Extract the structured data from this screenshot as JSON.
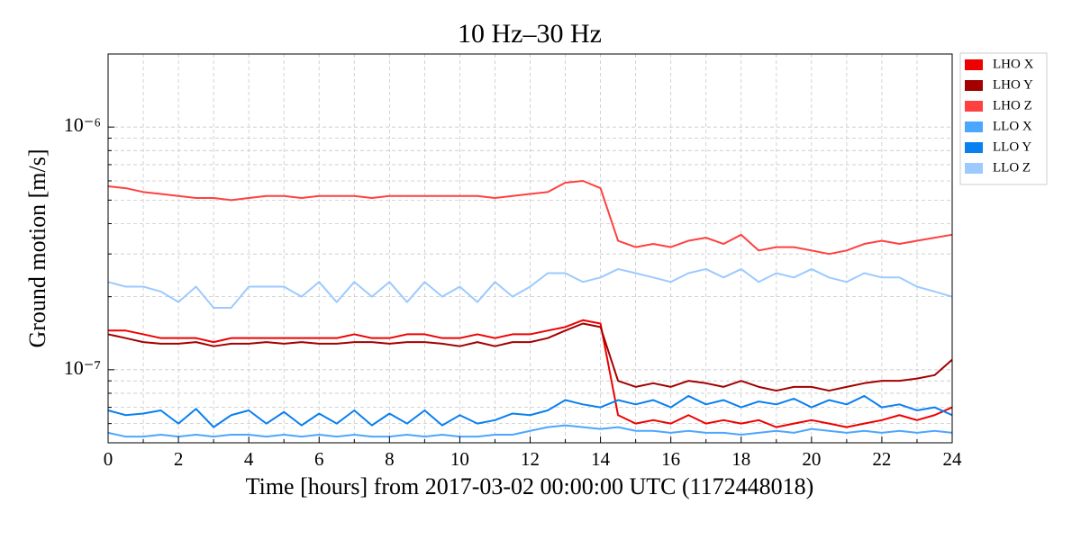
{
  "chart_data": {
    "type": "line",
    "title": "10 Hz–30 Hz",
    "xlabel": "Time [hours] from 2017-03-02 00:00:00 UTC (1172448018)",
    "ylabel": "Ground motion [m/s]",
    "yscale": "log",
    "grid": true,
    "legend": "outside-upper-right",
    "xlim": [
      0,
      24
    ],
    "xticks": [
      0,
      2,
      4,
      6,
      8,
      10,
      12,
      14,
      16,
      18,
      20,
      22,
      24
    ],
    "xminorticks": [
      1,
      3,
      5,
      7,
      9,
      11,
      13,
      15,
      17,
      19,
      21,
      23
    ],
    "ylim": [
      5e-08,
      2e-06
    ],
    "yticks": [
      {
        "value": 1e-07,
        "label": "10⁻⁷"
      },
      {
        "value": 1e-06,
        "label": "10⁻⁶"
      }
    ],
    "yminorticks": [
      6e-08,
      7e-08,
      8e-08,
      9e-08,
      2e-07,
      3e-07,
      4e-07,
      5e-07,
      6e-07,
      7e-07,
      8e-07,
      9e-07
    ],
    "x": [
      0,
      0.5,
      1,
      1.5,
      2,
      2.5,
      3,
      3.5,
      4,
      4.5,
      5,
      5.5,
      6,
      6.5,
      7,
      7.5,
      8,
      8.5,
      9,
      9.5,
      10,
      10.5,
      11,
      11.5,
      12,
      12.5,
      13,
      13.5,
      14,
      14.5,
      15,
      15.5,
      16,
      16.5,
      17,
      17.5,
      18,
      18.5,
      19,
      19.5,
      20,
      20.5,
      21,
      21.5,
      22,
      22.5,
      23,
      23.5,
      24
    ],
    "series": [
      {
        "name": "LHO X",
        "color": "#ee0000",
        "values": [
          1.45e-07,
          1.45e-07,
          1.4e-07,
          1.35e-07,
          1.35e-07,
          1.35e-07,
          1.3e-07,
          1.35e-07,
          1.35e-07,
          1.35e-07,
          1.35e-07,
          1.35e-07,
          1.35e-07,
          1.35e-07,
          1.4e-07,
          1.35e-07,
          1.35e-07,
          1.4e-07,
          1.4e-07,
          1.35e-07,
          1.35e-07,
          1.4e-07,
          1.35e-07,
          1.4e-07,
          1.4e-07,
          1.45e-07,
          1.5e-07,
          1.6e-07,
          1.55e-07,
          6.5e-08,
          6e-08,
          6.2e-08,
          6e-08,
          6.5e-08,
          6e-08,
          6.2e-08,
          6e-08,
          6.2e-08,
          5.8e-08,
          6e-08,
          6.2e-08,
          6e-08,
          5.8e-08,
          6e-08,
          6.2e-08,
          6.5e-08,
          6.2e-08,
          6.5e-08,
          7e-08
        ]
      },
      {
        "name": "LHO Y",
        "color": "#a30000",
        "values": [
          1.4e-07,
          1.35e-07,
          1.3e-07,
          1.28e-07,
          1.28e-07,
          1.3e-07,
          1.25e-07,
          1.28e-07,
          1.28e-07,
          1.3e-07,
          1.28e-07,
          1.3e-07,
          1.28e-07,
          1.28e-07,
          1.3e-07,
          1.3e-07,
          1.28e-07,
          1.3e-07,
          1.3e-07,
          1.28e-07,
          1.25e-07,
          1.3e-07,
          1.25e-07,
          1.3e-07,
          1.3e-07,
          1.35e-07,
          1.45e-07,
          1.55e-07,
          1.5e-07,
          9e-08,
          8.5e-08,
          8.8e-08,
          8.5e-08,
          9e-08,
          8.8e-08,
          8.5e-08,
          9e-08,
          8.5e-08,
          8.2e-08,
          8.5e-08,
          8.5e-08,
          8.2e-08,
          8.5e-08,
          8.8e-08,
          9e-08,
          9e-08,
          9.2e-08,
          9.5e-08,
          1.1e-07
        ]
      },
      {
        "name": "LHO Z",
        "color": "#ff4040",
        "values": [
          5.7e-07,
          5.6e-07,
          5.4e-07,
          5.3e-07,
          5.2e-07,
          5.1e-07,
          5.1e-07,
          5e-07,
          5.1e-07,
          5.2e-07,
          5.2e-07,
          5.1e-07,
          5.2e-07,
          5.2e-07,
          5.2e-07,
          5.1e-07,
          5.2e-07,
          5.2e-07,
          5.2e-07,
          5.2e-07,
          5.2e-07,
          5.2e-07,
          5.1e-07,
          5.2e-07,
          5.3e-07,
          5.4e-07,
          5.9e-07,
          6e-07,
          5.6e-07,
          3.4e-07,
          3.2e-07,
          3.3e-07,
          3.2e-07,
          3.4e-07,
          3.5e-07,
          3.3e-07,
          3.6e-07,
          3.1e-07,
          3.2e-07,
          3.2e-07,
          3.1e-07,
          3e-07,
          3.1e-07,
          3.3e-07,
          3.4e-07,
          3.3e-07,
          3.4e-07,
          3.5e-07,
          3.6e-07
        ]
      },
      {
        "name": "LLO X",
        "color": "#4ba6ff",
        "values": [
          5.5e-08,
          5.3e-08,
          5.3e-08,
          5.4e-08,
          5.3e-08,
          5.4e-08,
          5.3e-08,
          5.4e-08,
          5.4e-08,
          5.3e-08,
          5.4e-08,
          5.3e-08,
          5.4e-08,
          5.3e-08,
          5.4e-08,
          5.3e-08,
          5.3e-08,
          5.4e-08,
          5.3e-08,
          5.4e-08,
          5.3e-08,
          5.3e-08,
          5.4e-08,
          5.4e-08,
          5.6e-08,
          5.8e-08,
          5.9e-08,
          5.8e-08,
          5.7e-08,
          5.8e-08,
          5.6e-08,
          5.6e-08,
          5.5e-08,
          5.6e-08,
          5.5e-08,
          5.5e-08,
          5.4e-08,
          5.5e-08,
          5.6e-08,
          5.5e-08,
          5.7e-08,
          5.6e-08,
          5.5e-08,
          5.6e-08,
          5.5e-08,
          5.6e-08,
          5.5e-08,
          5.6e-08,
          5.5e-08
        ]
      },
      {
        "name": "LLO Y",
        "color": "#0a7ff0",
        "values": [
          6.8e-08,
          6.5e-08,
          6.6e-08,
          6.8e-08,
          6e-08,
          6.9e-08,
          5.8e-08,
          6.5e-08,
          6.8e-08,
          6e-08,
          6.7e-08,
          5.9e-08,
          6.6e-08,
          6e-08,
          6.8e-08,
          5.9e-08,
          6.6e-08,
          6e-08,
          6.8e-08,
          5.9e-08,
          6.5e-08,
          6e-08,
          6.2e-08,
          6.6e-08,
          6.5e-08,
          6.8e-08,
          7.5e-08,
          7.2e-08,
          7e-08,
          7.5e-08,
          7.2e-08,
          7.5e-08,
          7e-08,
          7.8e-08,
          7.2e-08,
          7.5e-08,
          7e-08,
          7.4e-08,
          7.2e-08,
          7.6e-08,
          7e-08,
          7.5e-08,
          7.2e-08,
          7.8e-08,
          7e-08,
          7.2e-08,
          6.8e-08,
          7e-08,
          6.5e-08
        ]
      },
      {
        "name": "LLO Z",
        "color": "#9ccaff",
        "values": [
          2.3e-07,
          2.2e-07,
          2.2e-07,
          2.1e-07,
          1.9e-07,
          2.2e-07,
          1.8e-07,
          1.8e-07,
          2.2e-07,
          2.2e-07,
          2.2e-07,
          2e-07,
          2.3e-07,
          1.9e-07,
          2.3e-07,
          2e-07,
          2.3e-07,
          1.9e-07,
          2.3e-07,
          2e-07,
          2.2e-07,
          1.9e-07,
          2.3e-07,
          2e-07,
          2.2e-07,
          2.5e-07,
          2.5e-07,
          2.3e-07,
          2.4e-07,
          2.6e-07,
          2.5e-07,
          2.4e-07,
          2.3e-07,
          2.5e-07,
          2.6e-07,
          2.4e-07,
          2.6e-07,
          2.3e-07,
          2.5e-07,
          2.4e-07,
          2.6e-07,
          2.4e-07,
          2.3e-07,
          2.5e-07,
          2.4e-07,
          2.4e-07,
          2.2e-07,
          2.1e-07,
          2e-07
        ]
      }
    ]
  }
}
